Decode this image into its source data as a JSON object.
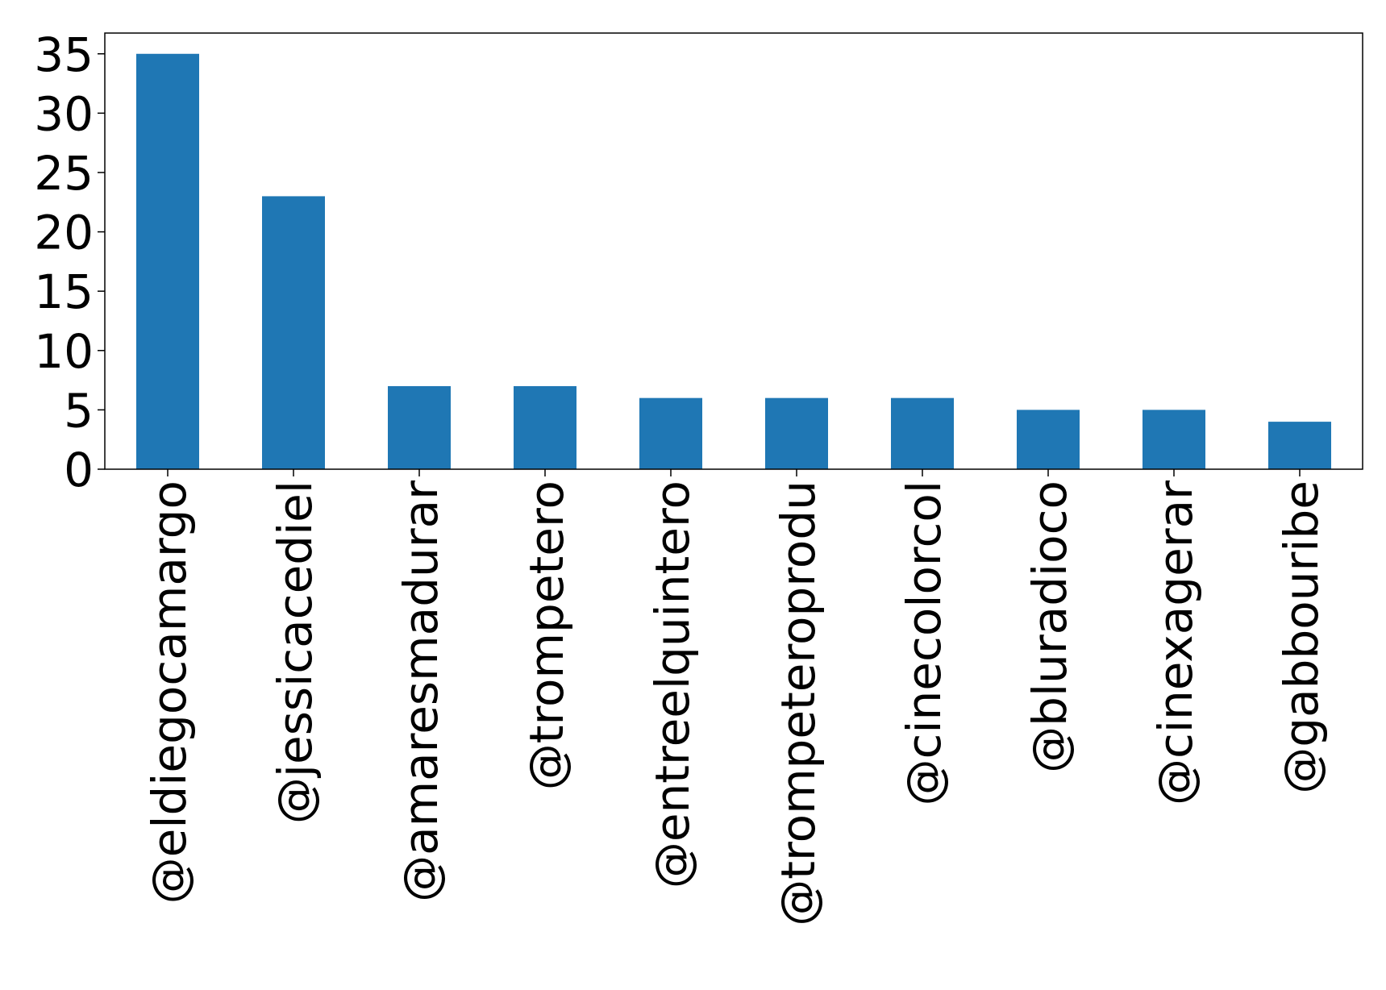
{
  "chart_data": {
    "type": "bar",
    "title": "",
    "xlabel": "",
    "ylabel": "",
    "categories": [
      "@eldiegocamargo",
      "@jessicacediel",
      "@amaresmadurar",
      "@trompetero",
      "@entreelquintero",
      "@trompeteroprodu",
      "@cinecolorcol",
      "@bluradioco",
      "@cinexagerar",
      "@gabbouribe"
    ],
    "values": [
      35,
      23,
      7,
      7,
      6,
      6,
      6,
      5,
      5,
      4
    ],
    "ylim": [
      0,
      36.75
    ],
    "yticks": [
      0,
      5,
      10,
      15,
      20,
      25,
      30,
      35
    ],
    "grid": false,
    "legend": "none",
    "bar_color": "#1f77b4"
  }
}
